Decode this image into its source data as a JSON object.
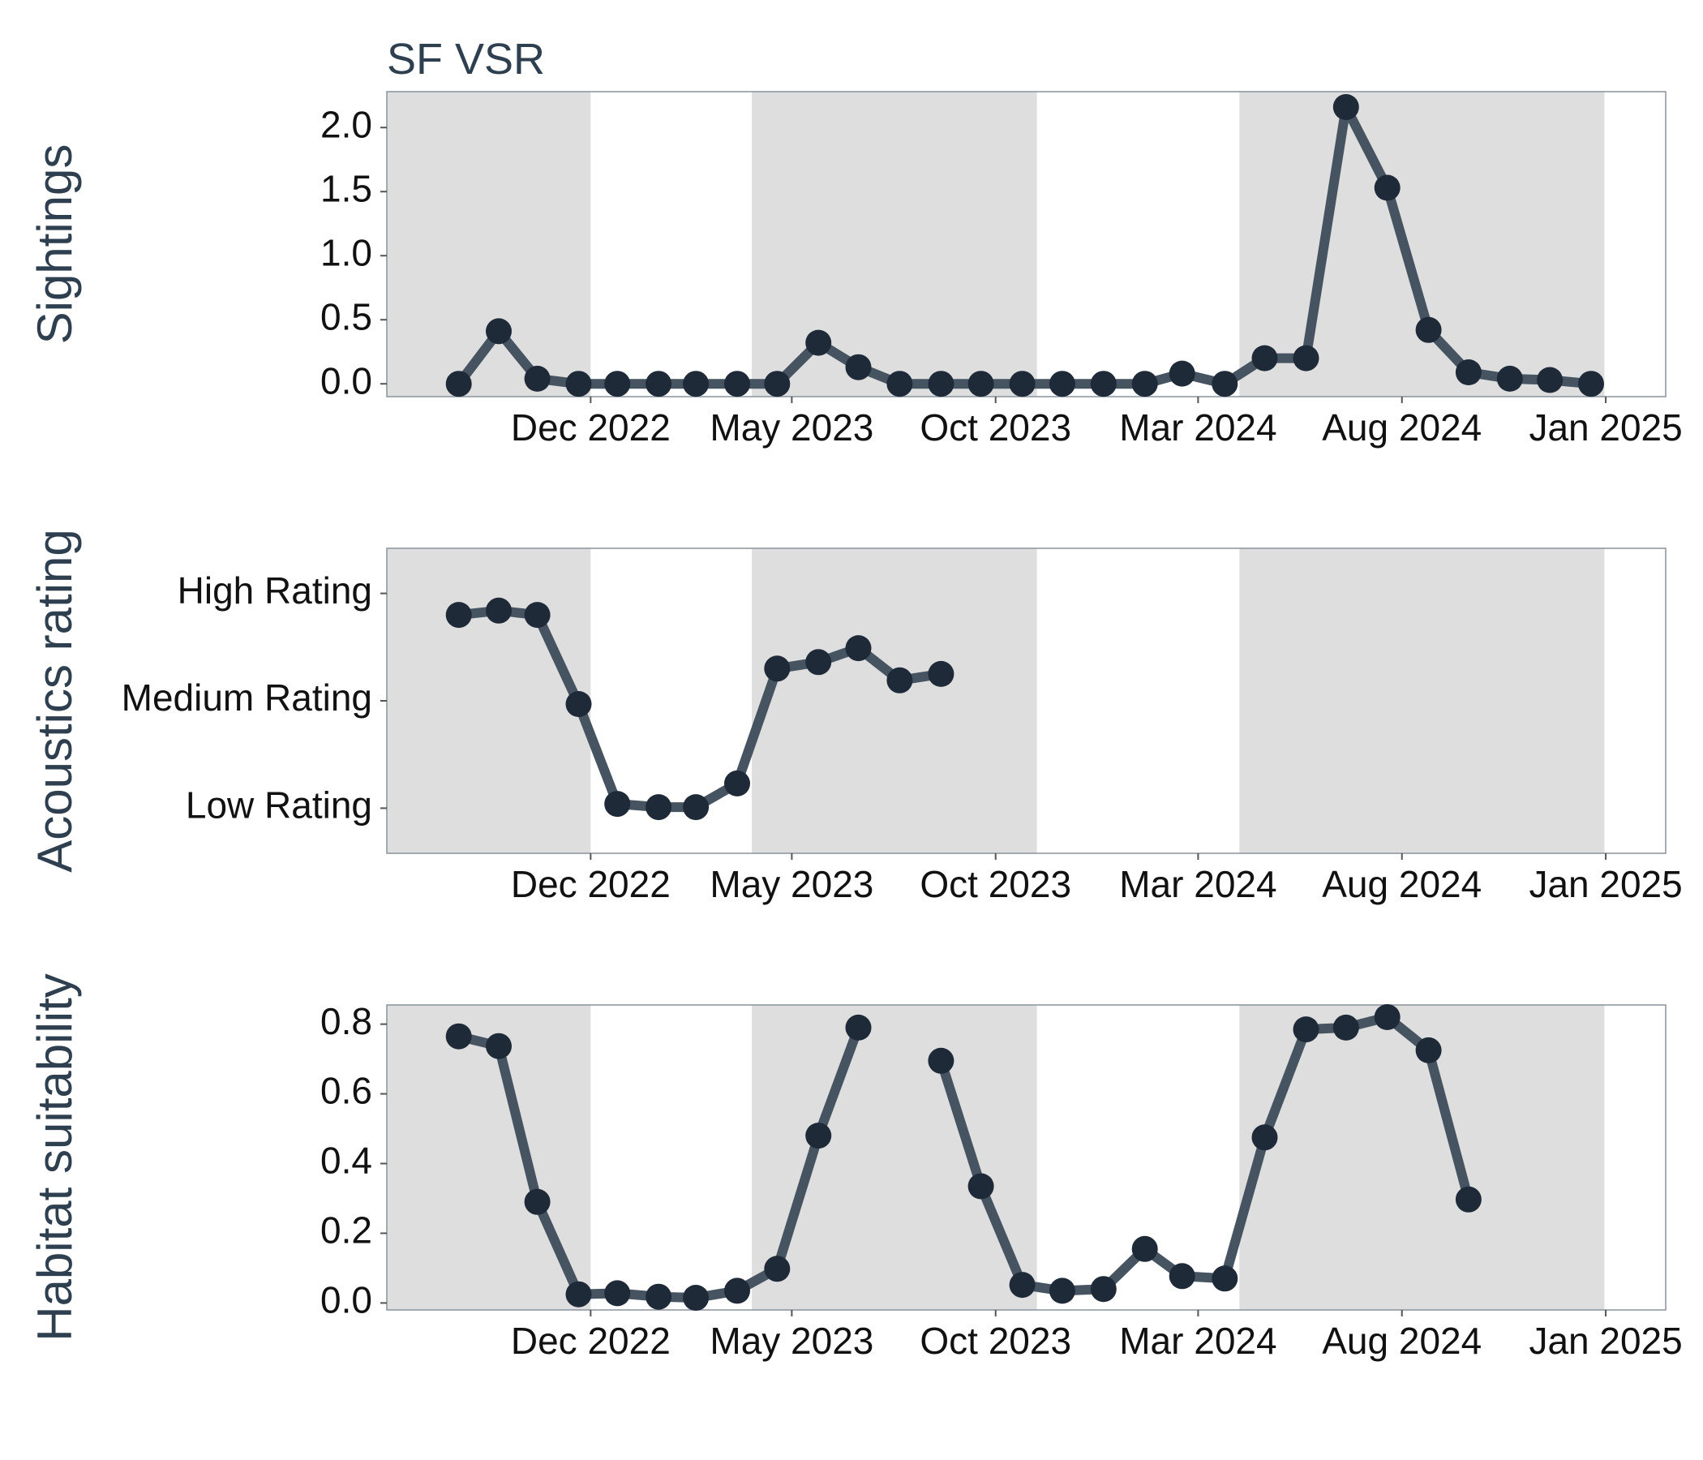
{
  "chart_data": [
    {
      "type": "line",
      "title": "SF VSR",
      "xlabel": "",
      "ylabel": "Sightings",
      "x_ticks": [
        "Dec 2022",
        "May 2023",
        "Oct 2023",
        "Mar 2024",
        "Aug 2024",
        "Jan 2025"
      ],
      "x_tick_dates": [
        "2022-12-01",
        "2023-05-01",
        "2023-10-01",
        "2024-03-01",
        "2024-08-01",
        "2025-01-01"
      ],
      "xlim": [
        "2022-07-01",
        "2025-02-15"
      ],
      "y_ticks": [
        "0.0",
        "0.5",
        "1.0",
        "1.5",
        "2.0"
      ],
      "y_tick_values": [
        0,
        0.5,
        1,
        1.5,
        2
      ],
      "ylim": [
        -0.1,
        2.28
      ],
      "grid": false,
      "x": [
        "2022-08-24",
        "2022-09-23",
        "2022-10-22",
        "2022-11-22",
        "2022-12-21",
        "2023-01-21",
        "2023-02-18",
        "2023-03-21",
        "2023-04-20",
        "2023-05-21",
        "2023-06-20",
        "2023-07-21",
        "2023-08-21",
        "2023-09-20",
        "2023-10-21",
        "2023-11-20",
        "2023-12-21",
        "2024-01-21",
        "2024-02-18",
        "2024-03-21",
        "2024-04-20",
        "2024-05-21",
        "2024-06-20",
        "2024-07-21",
        "2024-08-21",
        "2024-09-20",
        "2024-10-21",
        "2024-11-20",
        "2024-12-21"
      ],
      "series": [
        {
          "values": [
            0.0,
            0.41,
            0.04,
            0.0,
            0.0,
            0.0,
            0.0,
            0.0,
            0.0,
            0.32,
            0.13,
            0.0,
            0.0,
            0.0,
            0.0,
            0.0,
            0.0,
            0.0,
            0.08,
            0.0,
            0.2,
            0.2,
            2.16,
            1.53,
            0.42,
            0.09,
            0.04,
            0.03,
            0.0
          ],
          "color": "#465360"
        }
      ]
    },
    {
      "type": "line",
      "xlabel": "",
      "ylabel": "Acoustics rating",
      "x_ticks": [
        "Dec 2022",
        "May 2023",
        "Oct 2023",
        "Mar 2024",
        "Aug 2024",
        "Jan 2025"
      ],
      "x_tick_dates": [
        "2022-12-01",
        "2023-05-01",
        "2023-10-01",
        "2024-03-01",
        "2024-08-01",
        "2025-01-01"
      ],
      "xlim": [
        "2022-07-01",
        "2025-02-15"
      ],
      "y_ticks": [
        "Low Rating",
        "Medium Rating",
        "High Rating"
      ],
      "y_tick_values": [
        1,
        2,
        3
      ],
      "ylim": [
        0.58,
        3.42
      ],
      "grid": false,
      "x": [
        "2022-08-24",
        "2022-09-23",
        "2022-10-22",
        "2022-11-22",
        "2022-12-21",
        "2023-01-21",
        "2023-02-18",
        "2023-03-21",
        "2023-04-20",
        "2023-05-21",
        "2023-06-20",
        "2023-07-21",
        "2023-08-21"
      ],
      "series": [
        {
          "values": [
            2.8,
            2.84,
            2.8,
            1.97,
            1.04,
            1.01,
            1.01,
            1.23,
            2.3,
            2.36,
            2.49,
            2.19,
            2.25
          ],
          "color": "#465360"
        }
      ]
    },
    {
      "type": "line",
      "xlabel": "",
      "ylabel": "Habitat suitability",
      "x_ticks": [
        "Dec 2022",
        "May 2023",
        "Oct 2023",
        "Mar 2024",
        "Aug 2024",
        "Jan 2025"
      ],
      "x_tick_dates": [
        "2022-12-01",
        "2023-05-01",
        "2023-10-01",
        "2024-03-01",
        "2024-08-01",
        "2025-01-01"
      ],
      "xlim": [
        "2022-07-01",
        "2025-02-15"
      ],
      "y_ticks": [
        "0.0",
        "0.2",
        "0.4",
        "0.6",
        "0.8"
      ],
      "y_tick_values": [
        0,
        0.2,
        0.4,
        0.6,
        0.8
      ],
      "ylim": [
        -0.02,
        0.855
      ],
      "grid": false,
      "x": [
        "2022-08-24",
        "2022-09-23",
        "2022-10-22",
        "2022-11-22",
        "2022-12-21",
        "2023-01-21",
        "2023-02-18",
        "2023-03-21",
        "2023-04-20",
        "2023-05-21",
        "2023-06-20",
        "2023-07-21",
        "2023-08-21",
        "2023-09-20",
        "2023-10-21",
        "2023-11-20",
        "2023-12-21",
        "2024-01-21",
        "2024-02-18",
        "2024-03-21",
        "2024-04-20",
        "2024-05-21",
        "2024-06-20",
        "2024-07-21",
        "2024-08-21",
        "2024-09-20",
        "2024-10-21"
      ],
      "series": [
        {
          "values": [
            0.765,
            0.737,
            0.29,
            0.025,
            0.028,
            0.018,
            0.015,
            0.035,
            0.098,
            0.48,
            0.79,
            null,
            0.695,
            0.335,
            0.052,
            0.035,
            0.04,
            0.155,
            0.077,
            0.07,
            0.475,
            0.785,
            0.79,
            0.82,
            0.725,
            0.297,
            null
          ],
          "color": "#465360"
        }
      ]
    }
  ],
  "shaded_periods": [
    [
      "2022-07-01",
      "2022-12-01"
    ],
    [
      "2023-04-01",
      "2023-11-01"
    ],
    [
      "2024-04-01",
      "2024-12-31"
    ]
  ],
  "colors": {
    "line": "#465360",
    "marker": "#1f2a38",
    "shade": "#dedede",
    "frame": "#8a929c",
    "label": "#2e3f50"
  }
}
